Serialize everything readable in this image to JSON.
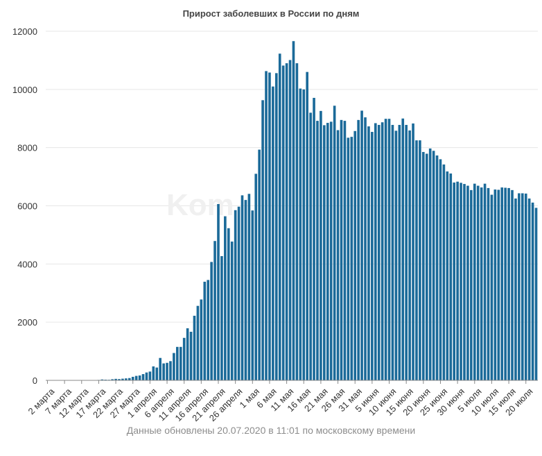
{
  "footnote": "Данные обновлены 20.07.2020 в 11:01 по московскому времени",
  "watermark": "Kom",
  "colors": {
    "bar": "#1b6a99",
    "grid": "#e6e6e6",
    "axis": "#888888"
  },
  "chart_data": {
    "type": "bar",
    "title": "Прирост заболевших в России по дням",
    "xlabel": "",
    "ylabel": "",
    "ylim": [
      0,
      12000
    ],
    "yticks": [
      0,
      2000,
      4000,
      6000,
      8000,
      10000,
      12000
    ],
    "grid": true,
    "legend": "none",
    "xtick_labels": [
      "2 марта",
      "7 марта",
      "12 марта",
      "17 марта",
      "22 марта",
      "27 марта",
      "1 апреля",
      "6 апреля",
      "11 апреля",
      "16 апреля",
      "21 апреля",
      "26 апреля",
      "1 мая",
      "6 мая",
      "11 мая",
      "16 мая",
      "21 мая",
      "26 мая",
      "31 мая",
      "5 июня",
      "10 июня",
      "15 июня",
      "20 июня",
      "25 июня",
      "30 июня",
      "5 июля",
      "10 июля",
      "15 июля",
      "20 июля"
    ],
    "values": [
      0,
      1,
      0,
      0,
      0,
      0,
      1,
      0,
      3,
      0,
      8,
      3,
      6,
      2,
      8,
      14,
      30,
      23,
      19,
      38,
      51,
      44,
      57,
      67,
      78,
      121,
      153,
      168,
      215,
      270,
      302,
      480,
      440,
      770,
      582,
      602,
      660,
      940,
      1150,
      1150,
      1460,
      1790,
      1670,
      2220,
      2560,
      2780,
      3390,
      3450,
      4070,
      4790,
      6060,
      4270,
      5640,
      5230,
      4770,
      5850,
      5970,
      6360,
      6200,
      6410,
      5840,
      7100,
      7930,
      9630,
      10630,
      10580,
      10100,
      10560,
      11230,
      10820,
      10900,
      11010,
      11660,
      10900,
      10030,
      10000,
      10600,
      9200,
      9710,
      8920,
      9260,
      8770,
      8850,
      8890,
      9440,
      8600,
      8950,
      8920,
      8340,
      8370,
      8570,
      8950,
      9270,
      9040,
      8730,
      8540,
      8840,
      8780,
      8870,
      8990,
      8990,
      8780,
      8580,
      8780,
      9000,
      8780,
      8590,
      8830,
      8250,
      8250,
      7850,
      7790,
      7970,
      7890,
      7730,
      7600,
      7420,
      7180,
      7110,
      6800,
      6830,
      6790,
      6750,
      6690,
      6540,
      6760,
      6690,
      6630,
      6760,
      6610,
      6380,
      6560,
      6550,
      6630,
      6620,
      6610,
      6540,
      6250,
      6430,
      6430,
      6420,
      6250,
      6110,
      5930
    ]
  }
}
